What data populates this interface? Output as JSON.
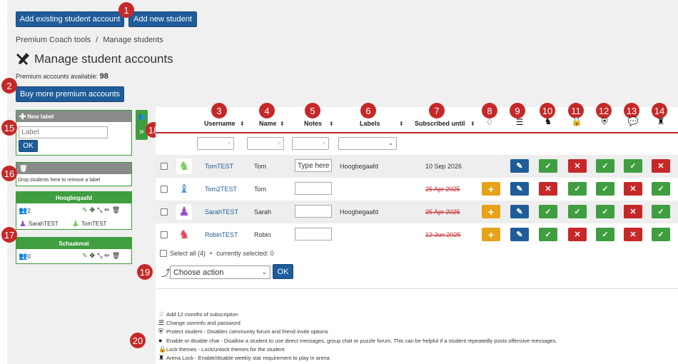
{
  "top_buttons": {
    "add_existing": "Add existing student account",
    "add_new": "Add new student"
  },
  "breadcrumb": {
    "parent": "Premium Coach tools",
    "separator": "/",
    "current": "Manage students"
  },
  "page_title": "Manage student accounts",
  "premium": {
    "label": "Premium accounts available:",
    "count": "98",
    "buy_button": "Buy more premium accounts"
  },
  "annotations": [
    "1",
    "2",
    "3",
    "4",
    "5",
    "6",
    "7",
    "8",
    "9",
    "10",
    "11",
    "12",
    "13",
    "14",
    "15",
    "16",
    "17",
    "18",
    "19",
    "20"
  ],
  "label_panel": {
    "new_label_title": "New label",
    "label_placeholder": "Label",
    "ok_button": "OK",
    "remove_hint": "Drop students here to remove a label"
  },
  "groups": [
    {
      "name": "Hoogbegaafd",
      "count": "2",
      "members": [
        "SarahTEST",
        "TomTEST"
      ]
    },
    {
      "name": "Schaakmat",
      "count": "0",
      "members": []
    }
  ],
  "table": {
    "headers": {
      "username": "Username",
      "name": "Name",
      "notes": "Notes",
      "labels": "Labels",
      "subscribed": "Subscribed until"
    },
    "rows": [
      {
        "username": "TomTEST",
        "name": "Tom",
        "notes": "Type here",
        "label": "Hoogbegaafd",
        "subscribed": "10 Sep 2026",
        "expired": false,
        "piece_color": "#7ccc5a"
      },
      {
        "username": "Tom2TEST",
        "name": "Tom",
        "notes": "",
        "label": "",
        "subscribed": "25 Apr 2025",
        "expired": true,
        "piece_color": "#5a9bd8"
      },
      {
        "username": "SarahTEST",
        "name": "Sarah",
        "notes": "",
        "label": "Hoogbegaafd",
        "subscribed": "25 Apr 2025",
        "expired": true,
        "piece_color": "#9b4fd0"
      },
      {
        "username": "RobinTEST",
        "name": "Robin",
        "notes": "",
        "label": "",
        "subscribed": "12 Jun 2025",
        "expired": true,
        "piece_color": "#e2445a"
      }
    ],
    "select_all": "Select all (4)",
    "bullet": "•",
    "currently_selected": "currently selected: 0",
    "action_placeholder": "Choose action",
    "action_ok": "OK"
  },
  "legend": [
    {
      "icon": "diamond-icon",
      "text": "Add 12 months of subscription"
    },
    {
      "icon": "list-icon",
      "text": "Change userinfo and password"
    },
    {
      "icon": "shield-icon",
      "text": "Protect student - Disables community forum and friend invite options"
    },
    {
      "icon": "chat-icon",
      "text": "Enable or disable chat - Disallow a student to use direct messages, group chat or puzzle forum. This can be helpful if a student repeatedly posts offensive messages."
    },
    {
      "icon": "lock-icon",
      "text": "Lock themes - Lock/unlock themes for the student"
    },
    {
      "icon": "castle-icon",
      "text": "Arena Lock - Enable/disable weekly star requirement to play in arena"
    }
  ]
}
